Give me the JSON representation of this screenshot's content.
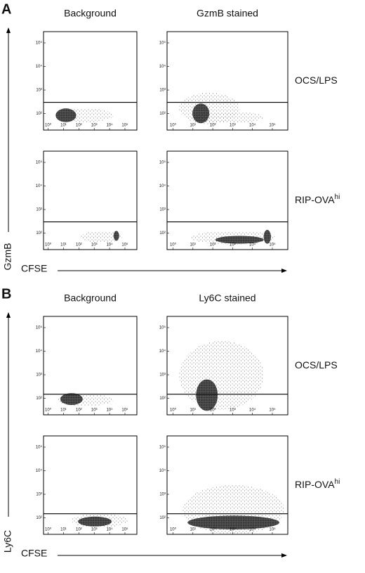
{
  "figure": {
    "panels": [
      {
        "letter": "A",
        "y_label": "GzmB",
        "x_label": "CFSE",
        "columns": [
          "Background",
          "GzmB stained"
        ],
        "rows": [
          {
            "text": "OCS/LPS"
          },
          {
            "text": "RIP-OVA",
            "sup": "hi"
          }
        ]
      },
      {
        "letter": "B",
        "y_label": "Ly6C",
        "x_label": "CFSE",
        "columns": [
          "Background",
          "Ly6C stained"
        ],
        "rows": [
          {
            "text": "OCS/LPS"
          },
          {
            "text": "RIP-OVA",
            "sup": "hi"
          }
        ]
      }
    ]
  },
  "chart_data": [
    {
      "type": "scatter",
      "gate": 300,
      "xlim": [
        0.5,
        600000
      ],
      "ylim": [
        20,
        300000
      ],
      "xticks": [
        {
          "value": 1,
          "label": "10⁰"
        },
        {
          "value": 10,
          "label": "10¹"
        },
        {
          "value": 100,
          "label": "10²"
        },
        {
          "value": 1000,
          "label": "10³"
        },
        {
          "value": 10000,
          "label": "10⁴"
        },
        {
          "value": 100000,
          "label": "10⁵"
        }
      ],
      "yticks": [
        {
          "value": 100,
          "label": "10²"
        },
        {
          "value": 1000,
          "label": "10³"
        },
        {
          "value": 10000,
          "label": "10⁴"
        },
        {
          "value": 100000,
          "label": "10⁵"
        }
      ]
    },
    {
      "type": "scatter",
      "gate": 300,
      "xlim": [
        0.5,
        600000
      ],
      "ylim": [
        20,
        300000
      ],
      "xticks": [
        {
          "value": 1,
          "label": "10⁰"
        },
        {
          "value": 10,
          "label": "10¹"
        },
        {
          "value": 100,
          "label": "10²"
        },
        {
          "value": 1000,
          "label": "10³"
        },
        {
          "value": 10000,
          "label": "10⁴"
        },
        {
          "value": 100000,
          "label": "10⁵"
        }
      ],
      "yticks": [
        {
          "value": 100,
          "label": "10²"
        },
        {
          "value": 1000,
          "label": "10³"
        },
        {
          "value": 10000,
          "label": "10⁴"
        },
        {
          "value": 100000,
          "label": "10⁵"
        }
      ]
    },
    {
      "type": "scatter",
      "gate": 300,
      "xlim": [
        0.5,
        600000
      ],
      "ylim": [
        20,
        300000
      ],
      "xticks": [
        {
          "value": 1,
          "label": "10⁰"
        },
        {
          "value": 10,
          "label": "10¹"
        },
        {
          "value": 100,
          "label": "10²"
        },
        {
          "value": 1000,
          "label": "10³"
        },
        {
          "value": 10000,
          "label": "10⁴"
        },
        {
          "value": 100000,
          "label": "10⁵"
        }
      ],
      "yticks": [
        {
          "value": 100,
          "label": "10²"
        },
        {
          "value": 1000,
          "label": "10³"
        },
        {
          "value": 10000,
          "label": "10⁴"
        },
        {
          "value": 100000,
          "label": "10⁵"
        }
      ]
    },
    {
      "type": "scatter",
      "gate": 300,
      "xlim": [
        0.5,
        600000
      ],
      "ylim": [
        20,
        300000
      ],
      "xticks": [
        {
          "value": 1,
          "label": "10⁰"
        },
        {
          "value": 10,
          "label": "10¹"
        },
        {
          "value": 100,
          "label": "10²"
        },
        {
          "value": 1000,
          "label": "10³"
        },
        {
          "value": 10000,
          "label": "10⁴"
        },
        {
          "value": 100000,
          "label": "10⁵"
        }
      ],
      "yticks": [
        {
          "value": 100,
          "label": "10²"
        },
        {
          "value": 1000,
          "label": "10³"
        },
        {
          "value": 10000,
          "label": "10⁴"
        },
        {
          "value": 100000,
          "label": "10⁵"
        }
      ]
    },
    {
      "type": "scatter",
      "gate": 150,
      "xlim": [
        0.5,
        600000
      ],
      "ylim": [
        20,
        300000
      ],
      "xticks": [
        {
          "value": 1,
          "label": "10⁰"
        },
        {
          "value": 10,
          "label": "10¹"
        },
        {
          "value": 100,
          "label": "10²"
        },
        {
          "value": 1000,
          "label": "10³"
        },
        {
          "value": 10000,
          "label": "10⁴"
        },
        {
          "value": 100000,
          "label": "10⁵"
        }
      ],
      "yticks": [
        {
          "value": 100,
          "label": "10²"
        },
        {
          "value": 1000,
          "label": "10³"
        },
        {
          "value": 10000,
          "label": "10⁴"
        },
        {
          "value": 100000,
          "label": "10⁵"
        }
      ]
    },
    {
      "type": "scatter",
      "gate": 150,
      "xlim": [
        0.5,
        600000
      ],
      "ylim": [
        20,
        300000
      ],
      "xticks": [
        {
          "value": 1,
          "label": "10⁰"
        },
        {
          "value": 10,
          "label": "10¹"
        },
        {
          "value": 100,
          "label": "10²"
        },
        {
          "value": 1000,
          "label": "10³"
        },
        {
          "value": 10000,
          "label": "10⁴"
        },
        {
          "value": 100000,
          "label": "10⁵"
        }
      ],
      "yticks": [
        {
          "value": 100,
          "label": "10²"
        },
        {
          "value": 1000,
          "label": "10³"
        },
        {
          "value": 10000,
          "label": "10⁴"
        },
        {
          "value": 100000,
          "label": "10⁵"
        }
      ]
    },
    {
      "type": "scatter",
      "gate": 150,
      "xlim": [
        0.5,
        600000
      ],
      "ylim": [
        20,
        300000
      ],
      "xticks": [
        {
          "value": 1,
          "label": "10⁰"
        },
        {
          "value": 10,
          "label": "10¹"
        },
        {
          "value": 100,
          "label": "10²"
        },
        {
          "value": 1000,
          "label": "10³"
        },
        {
          "value": 10000,
          "label": "10⁴"
        },
        {
          "value": 100000,
          "label": "10⁵"
        }
      ],
      "yticks": [
        {
          "value": 100,
          "label": "10²"
        },
        {
          "value": 1000,
          "label": "10³"
        },
        {
          "value": 10000,
          "label": "10⁴"
        },
        {
          "value": 100000,
          "label": "10⁵"
        }
      ]
    },
    {
      "type": "scatter",
      "gate": 150,
      "xlim": [
        0.5,
        600000
      ],
      "ylim": [
        20,
        300000
      ],
      "xticks": [
        {
          "value": 1,
          "label": "10⁰"
        },
        {
          "value": 10,
          "label": "10¹"
        },
        {
          "value": 100,
          "label": "10²"
        },
        {
          "value": 1000,
          "label": "10³"
        },
        {
          "value": 10000,
          "label": "10⁴"
        },
        {
          "value": 100000,
          "label": "10⁵"
        }
      ],
      "yticks": [
        {
          "value": 100,
          "label": "10²"
        },
        {
          "value": 1000,
          "label": "10³"
        },
        {
          "value": 10000,
          "label": "10⁴"
        },
        {
          "value": 100000,
          "label": "10⁵"
        }
      ]
    }
  ]
}
